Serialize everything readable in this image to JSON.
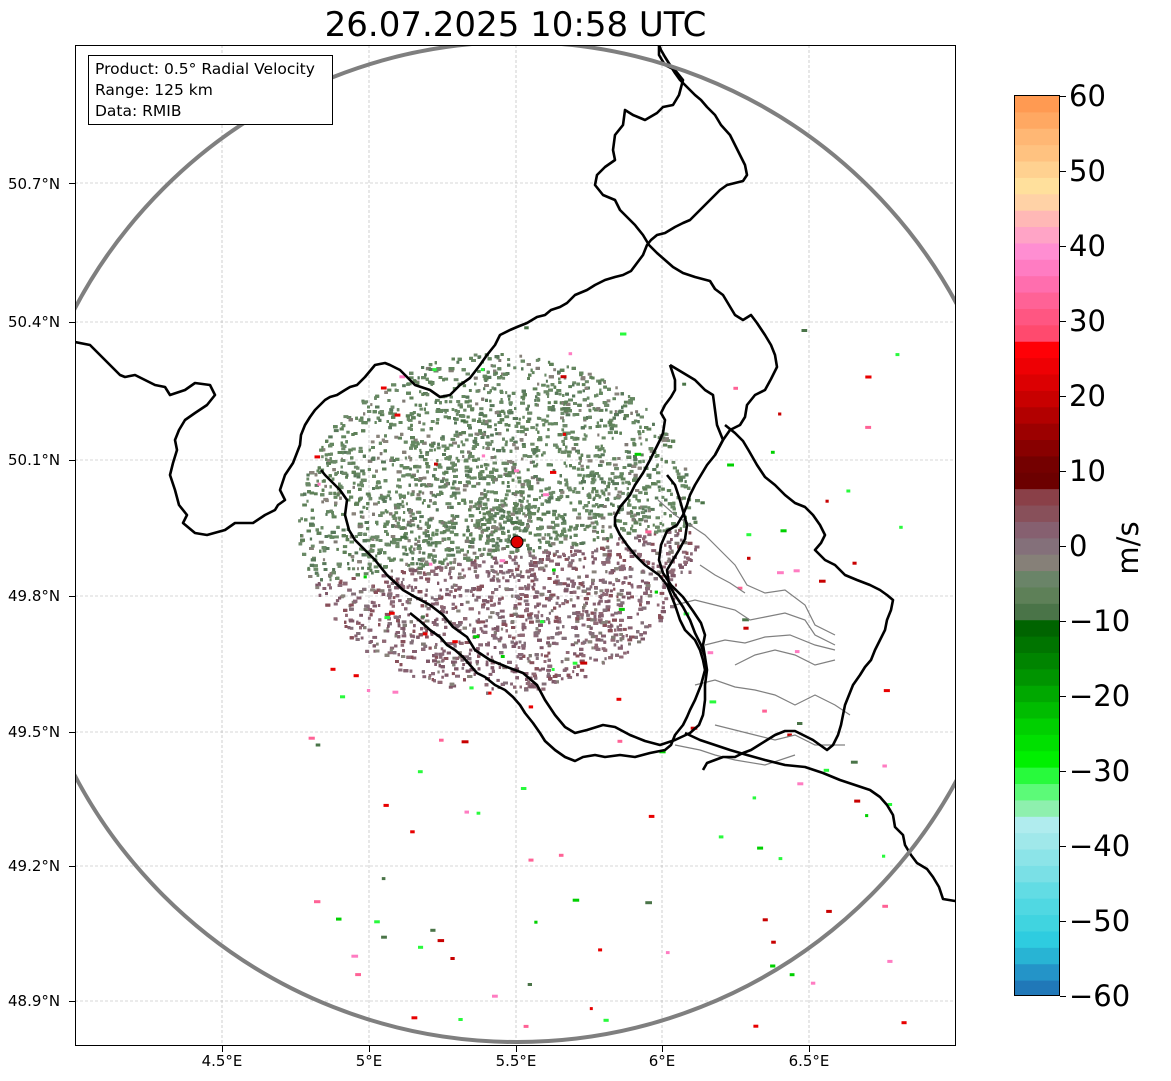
{
  "title": "26.07.2025 10:58 UTC",
  "info": {
    "product": "Product: 0.5° Radial Velocity",
    "range": "Range: 125 km",
    "data": "Data: RMIB"
  },
  "axes": {
    "lat_ticks": [
      "50.7°N",
      "50.4°N",
      "50.1°N",
      "49.8°N",
      "49.5°N",
      "49.2°N",
      "48.9°N"
    ],
    "lon_ticks": [
      "4.5°E",
      "5°E",
      "5.5°E",
      "6°E",
      "6.5°E"
    ]
  },
  "colorbar": {
    "unit": "m/s",
    "ticks": [
      "60",
      "50",
      "40",
      "30",
      "20",
      "10",
      "0",
      "−10",
      "−20",
      "−30",
      "−40",
      "−50",
      "−60"
    ],
    "range": [
      -60,
      60
    ],
    "colors_top_to_bottom": [
      "#ff9a52",
      "#ffa862",
      "#ffb774",
      "#ffc280",
      "#ffd190",
      "#ffe09c",
      "#ffd2a6",
      "#ffb8b6",
      "#ffa4c6",
      "#ff8ed2",
      "#ff7cc2",
      "#ff6eae",
      "#ff6296",
      "#ff5682",
      "#ff4a6e",
      "#ff0006",
      "#ee0004",
      "#dc0002",
      "#c80000",
      "#b20000",
      "#9c0000",
      "#880000",
      "#740000",
      "#6c0000",
      "#8a4048",
      "#88505a",
      "#866070",
      "#84707a",
      "#868078",
      "#6a8468",
      "#5e8058",
      "#4a7448",
      "#006400",
      "#007400",
      "#008400",
      "#009400",
      "#00a800",
      "#00bc00",
      "#00d000",
      "#00e000",
      "#00f000",
      "#28fa3c",
      "#5cfa78",
      "#8ef0ae",
      "#b0ecee",
      "#a0e8ea",
      "#8ce4e8",
      "#7ae0e6",
      "#62dce4",
      "#50d8e2",
      "#40d4e0",
      "#2ecce0",
      "#28b4d4",
      "#2494c8",
      "#2078b8"
    ]
  },
  "map": {
    "radar_site": {
      "lon": 5.505,
      "lat": 49.914
    },
    "range_km": 125,
    "lon_range": [
      4.0,
      7.0
    ],
    "lat_range": [
      48.8,
      51.0
    ],
    "colors": {
      "border": "#000000",
      "range_ring": "#7f7f7f",
      "admin": "#808080",
      "grid": "#b0b0b0",
      "site": "#e00000"
    }
  }
}
